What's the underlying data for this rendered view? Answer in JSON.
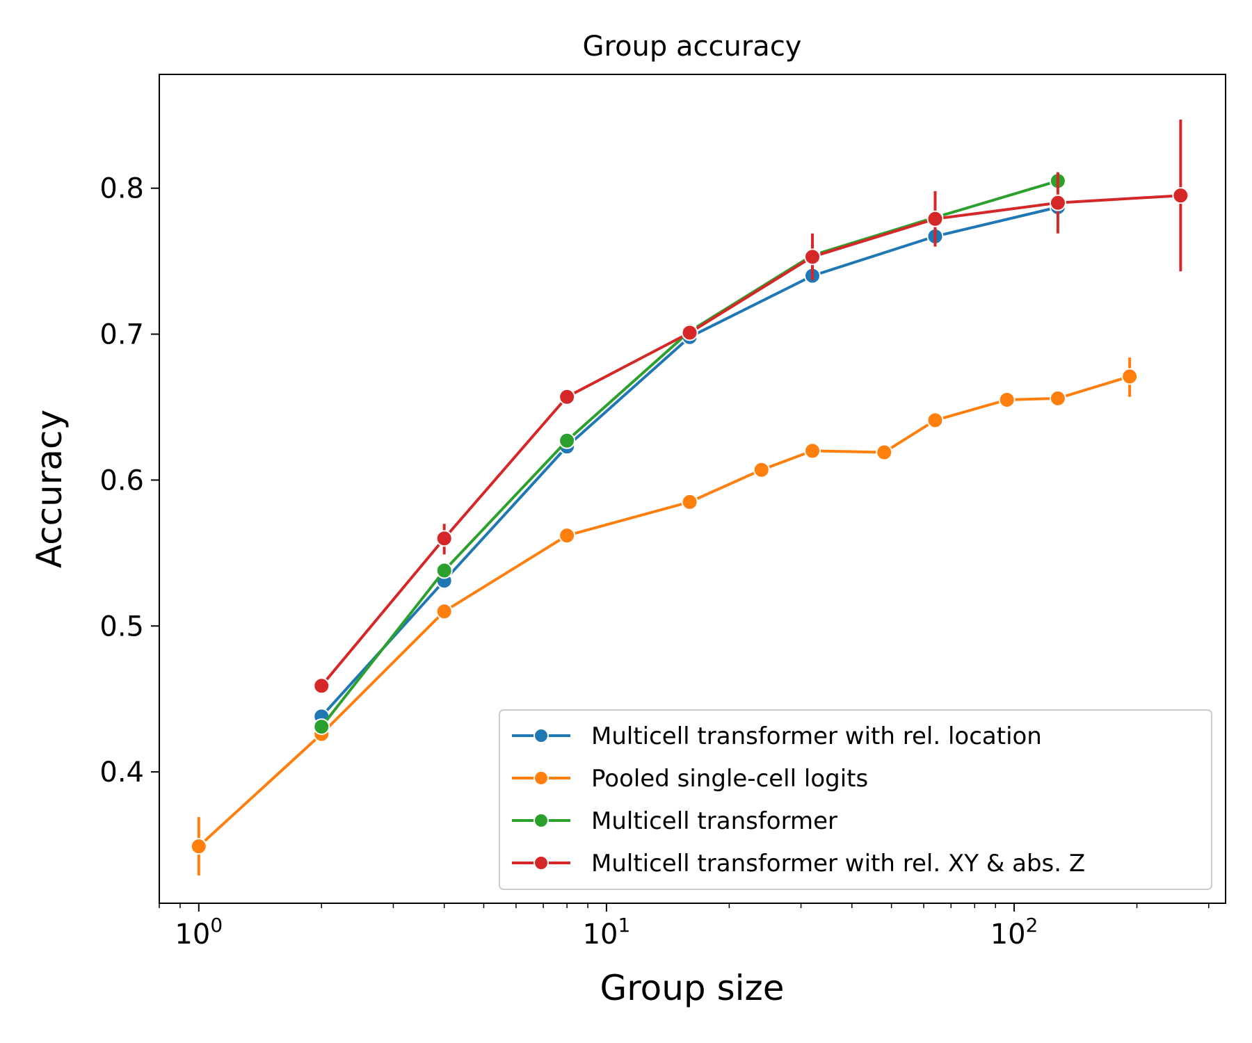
{
  "chart_data": {
    "type": "line",
    "title": "Group accuracy",
    "xlabel": "Group size",
    "ylabel": "Accuracy",
    "x_scale": "log",
    "xlim": [
      0.8,
      330
    ],
    "ylim": [
      0.31,
      0.878
    ],
    "x_ticks": [
      {
        "value": 1,
        "base": "10",
        "exp": "0"
      },
      {
        "value": 10,
        "base": "10",
        "exp": "1"
      },
      {
        "value": 100,
        "base": "10",
        "exp": "2"
      }
    ],
    "y_ticks": [
      {
        "value": 0.4,
        "label": "0.4"
      },
      {
        "value": 0.5,
        "label": "0.5"
      },
      {
        "value": 0.6,
        "label": "0.6"
      },
      {
        "value": 0.7,
        "label": "0.7"
      },
      {
        "value": 0.8,
        "label": "0.8"
      }
    ],
    "legend_position": "lower-right",
    "grid": false,
    "series": [
      {
        "name": "Multicell transformer with rel. location",
        "color": "#1f77b4",
        "points": [
          {
            "x": 2,
            "y": 0.438
          },
          {
            "x": 4,
            "y": 0.531
          },
          {
            "x": 8,
            "y": 0.623
          },
          {
            "x": 16,
            "y": 0.698
          },
          {
            "x": 32,
            "y": 0.74
          },
          {
            "x": 64,
            "y": 0.767
          },
          {
            "x": 128,
            "y": 0.787
          }
        ]
      },
      {
        "name": "Pooled single-cell logits",
        "color": "#ff7f0e",
        "points": [
          {
            "x": 1,
            "y": 0.349,
            "err": [
              0.329,
              0.369
            ]
          },
          {
            "x": 2,
            "y": 0.426
          },
          {
            "x": 4,
            "y": 0.51
          },
          {
            "x": 8,
            "y": 0.562
          },
          {
            "x": 16,
            "y": 0.585
          },
          {
            "x": 24,
            "y": 0.607
          },
          {
            "x": 32,
            "y": 0.62
          },
          {
            "x": 48,
            "y": 0.619
          },
          {
            "x": 64,
            "y": 0.641
          },
          {
            "x": 96,
            "y": 0.655
          },
          {
            "x": 128,
            "y": 0.656
          },
          {
            "x": 192,
            "y": 0.671,
            "err": [
              0.657,
              0.684
            ]
          }
        ]
      },
      {
        "name": "Multicell transformer",
        "color": "#2ca02c",
        "points": [
          {
            "x": 2,
            "y": 0.431
          },
          {
            "x": 4,
            "y": 0.538
          },
          {
            "x": 8,
            "y": 0.627
          },
          {
            "x": 16,
            "y": 0.702
          },
          {
            "x": 32,
            "y": 0.754
          },
          {
            "x": 64,
            "y": 0.78
          },
          {
            "x": 128,
            "y": 0.805
          }
        ]
      },
      {
        "name": "Multicell transformer with rel. XY & abs. Z",
        "color": "#d62728",
        "points": [
          {
            "x": 2,
            "y": 0.459
          },
          {
            "x": 4,
            "y": 0.56,
            "err": [
              0.549,
              0.57
            ]
          },
          {
            "x": 8,
            "y": 0.657
          },
          {
            "x": 16,
            "y": 0.701
          },
          {
            "x": 32,
            "y": 0.753,
            "err": [
              0.737,
              0.769
            ]
          },
          {
            "x": 64,
            "y": 0.779,
            "err": [
              0.76,
              0.798
            ]
          },
          {
            "x": 128,
            "y": 0.79,
            "err": [
              0.769,
              0.811
            ]
          },
          {
            "x": 256,
            "y": 0.795,
            "err": [
              0.743,
              0.847
            ]
          }
        ]
      }
    ]
  }
}
